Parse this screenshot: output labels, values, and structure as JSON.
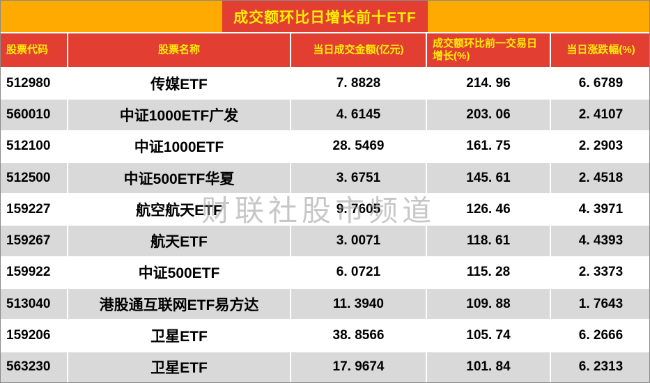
{
  "title": "成交额环比日增长前十ETF",
  "watermark": "财联社股市频道",
  "colors": {
    "orange": "#FFAA00",
    "red": "#E23E32",
    "title_yellow": "#FFF000",
    "row_gray": "#D9D9D9",
    "row_white": "#FFFFFF",
    "text": "#000000"
  },
  "table": {
    "headers": [
      "股票代码",
      "股票名称",
      "当日成交金额(亿元)",
      "成交额环比前一交易日增长(%)",
      "当日涨跌幅(%)"
    ],
    "rows": [
      [
        "512980",
        "传媒ETF",
        "7. 8828",
        "214. 96",
        "6. 6789"
      ],
      [
        "560010",
        "中证1000ETF广发",
        "4. 6145",
        "203. 06",
        "2. 4107"
      ],
      [
        "512100",
        "中证1000ETF",
        "28. 5469",
        "161. 75",
        "2. 2903"
      ],
      [
        "512500",
        "中证500ETF华夏",
        "3. 6751",
        "145. 61",
        "2. 4518"
      ],
      [
        "159227",
        "航空航天ETF",
        "9. 7605",
        "126. 46",
        "4. 3971"
      ],
      [
        "159267",
        "航天ETF",
        "3. 0071",
        "118. 61",
        "4. 4393"
      ],
      [
        "159922",
        "中证500ETF",
        "6. 0721",
        "115. 28",
        "2. 3373"
      ],
      [
        "513040",
        "港股通互联网ETF易方达",
        "11. 3940",
        "109. 88",
        "1. 7643"
      ],
      [
        "159206",
        "卫星ETF",
        "38. 8566",
        "105. 74",
        "6. 2666"
      ],
      [
        "563230",
        "卫星ETF",
        "17. 9674",
        "101. 84",
        "6. 2313"
      ]
    ]
  },
  "chart_data": {
    "type": "table",
    "title": "成交额环比日增长前十ETF",
    "columns": [
      "股票代码",
      "股票名称",
      "当日成交金额(亿元)",
      "成交额环比前一交易日增长(%)",
      "当日涨跌幅(%)"
    ],
    "rows": [
      [
        "512980",
        "传媒ETF",
        7.8828,
        214.96,
        6.6789
      ],
      [
        "560010",
        "中证1000ETF广发",
        4.6145,
        203.06,
        2.4107
      ],
      [
        "512100",
        "中证1000ETF",
        28.5469,
        161.75,
        2.2903
      ],
      [
        "512500",
        "中证500ETF华夏",
        3.6751,
        145.61,
        2.4518
      ],
      [
        "159227",
        "航空航天ETF",
        9.7605,
        126.46,
        4.3971
      ],
      [
        "159267",
        "航天ETF",
        3.0071,
        118.61,
        4.4393
      ],
      [
        "159922",
        "中证500ETF",
        6.0721,
        115.28,
        2.3373
      ],
      [
        "513040",
        "港股通互联网ETF易方达",
        11.394,
        109.88,
        1.7643
      ],
      [
        "159206",
        "卫星ETF",
        38.8566,
        105.74,
        6.2666
      ],
      [
        "563230",
        "卫星ETF",
        17.9674,
        101.84,
        6.2313
      ]
    ]
  }
}
